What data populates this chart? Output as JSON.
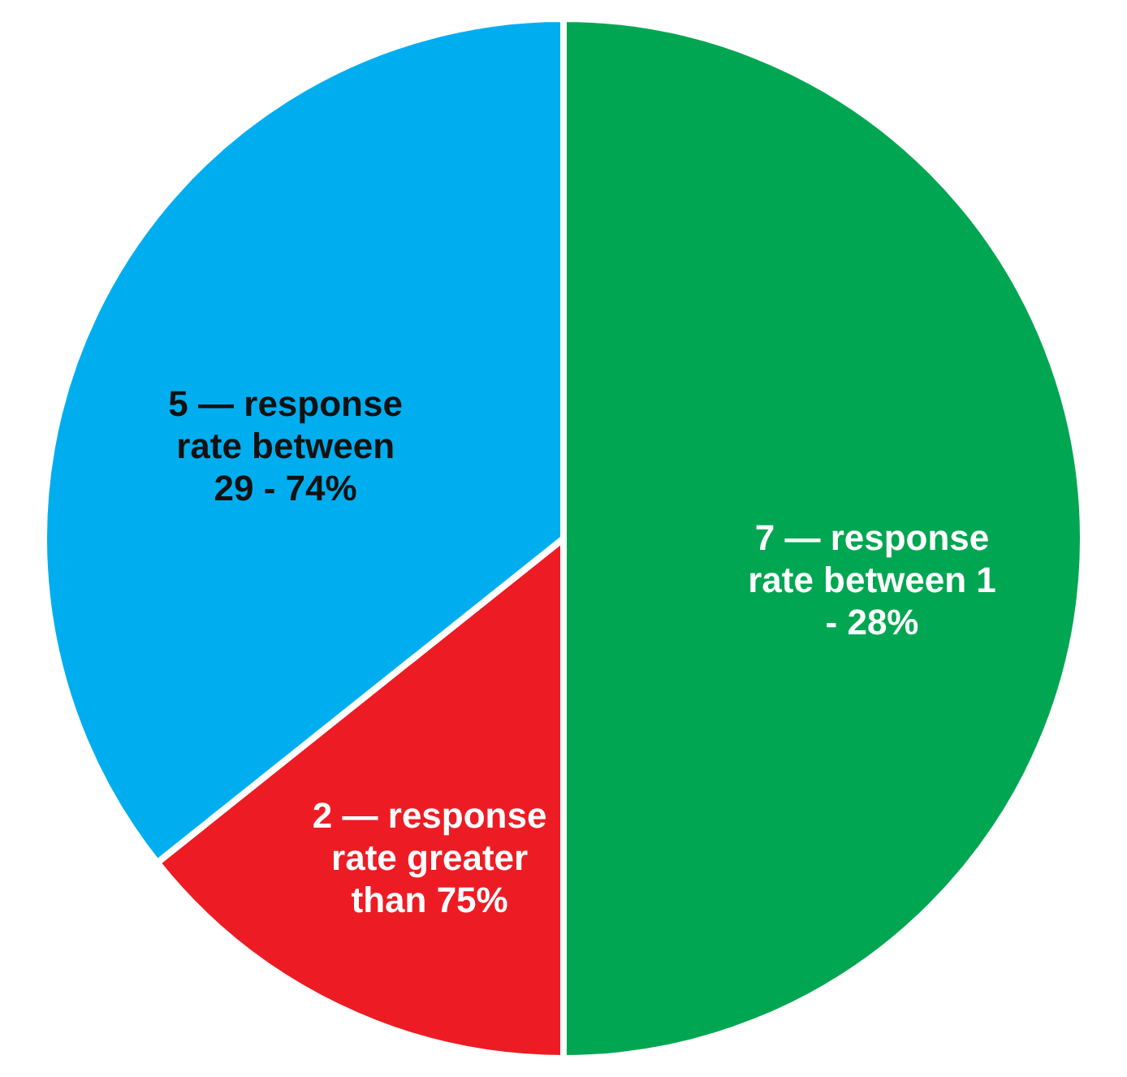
{
  "chart_data": {
    "type": "pie",
    "categories": [
      "7 — response rate between 1 - 28%",
      "2 — response rate greater than 75%",
      "5 — response rate between 29 - 74%"
    ],
    "values": [
      7,
      2,
      5
    ],
    "colors": [
      "#00a651",
      "#ed1c24",
      "#00aeef"
    ],
    "legend": false
  }
}
